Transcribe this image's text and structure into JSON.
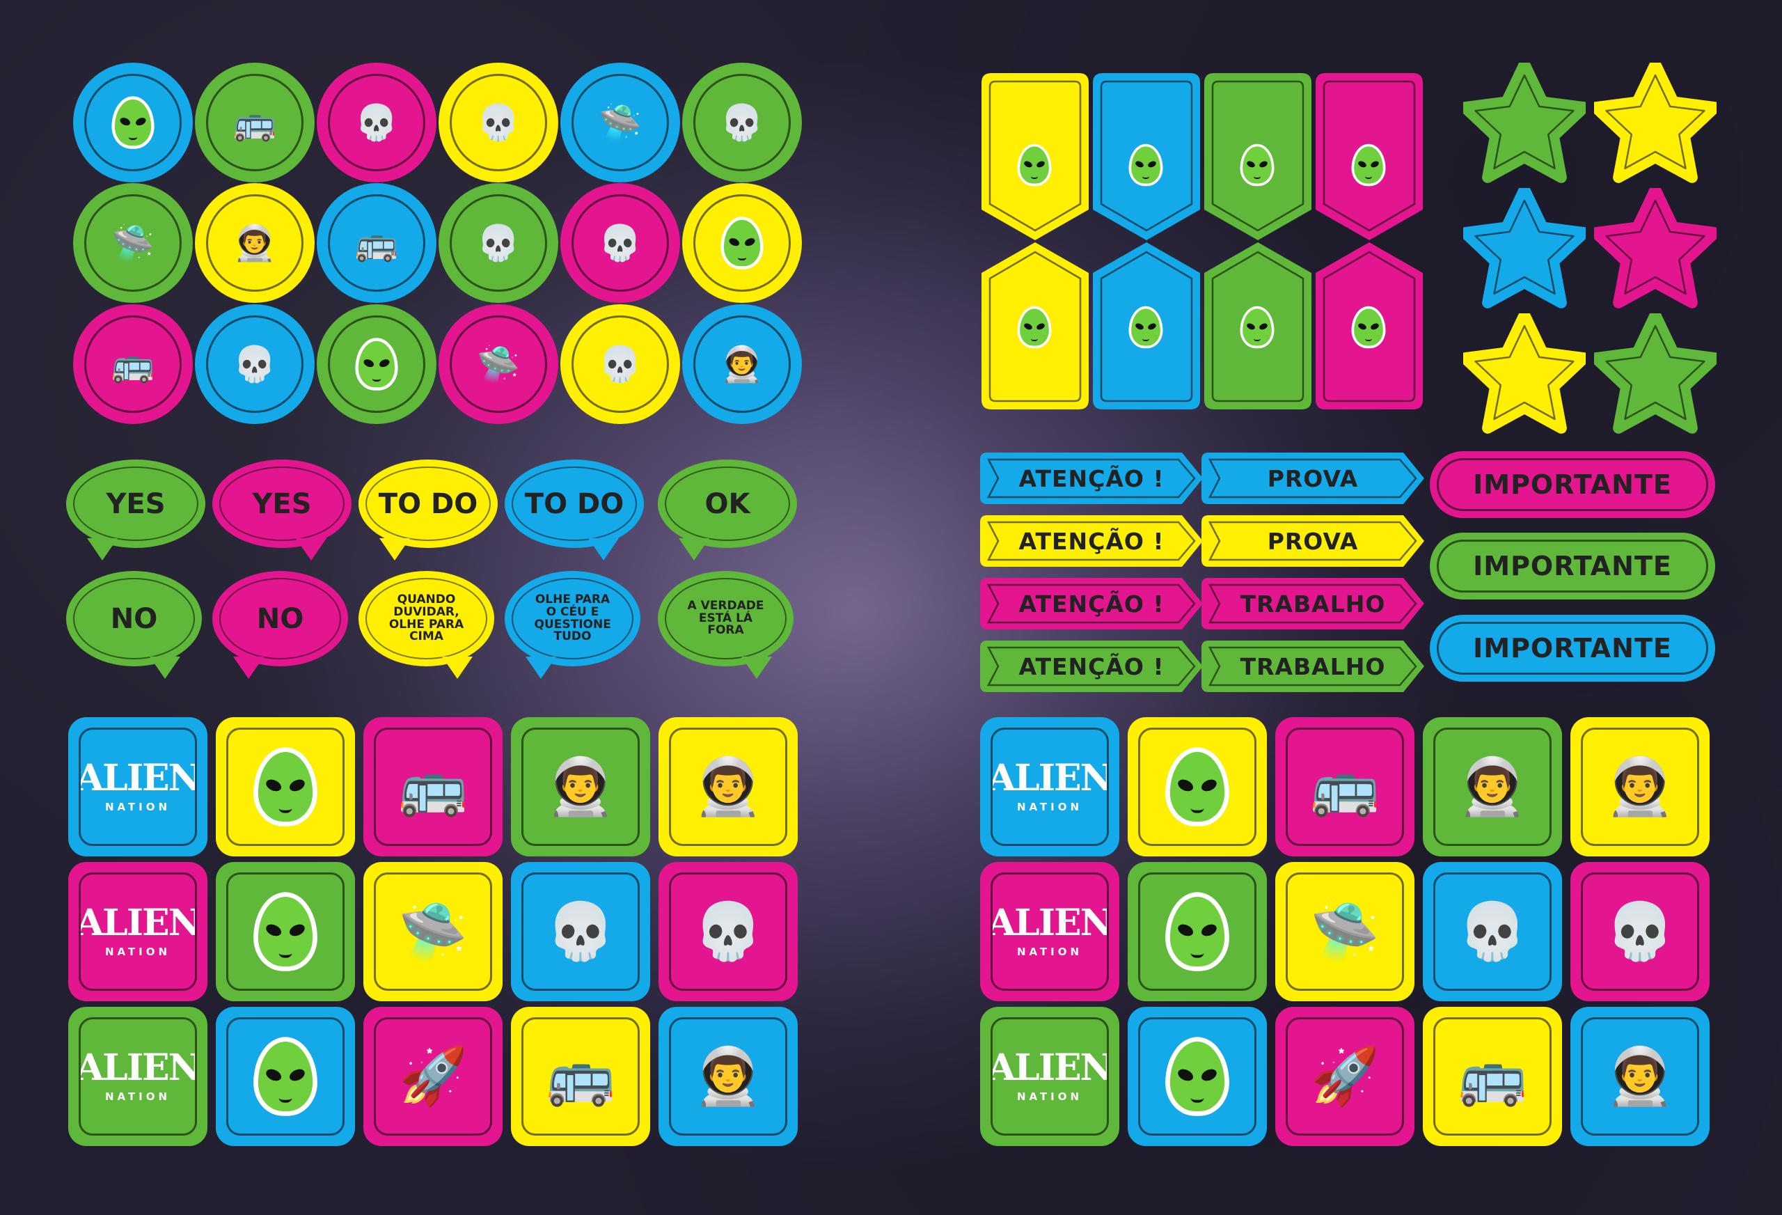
{
  "colors": {
    "blue": "#14a9e8",
    "green": "#5fb83a",
    "pink": "#e3168f",
    "yellow": "#ffef00",
    "bg": "#3a3350"
  },
  "bubbles": [
    {
      "text": "YES",
      "color": "green"
    },
    {
      "text": "YES",
      "color": "pink"
    },
    {
      "text": "TO DO",
      "color": "yellow"
    },
    {
      "text": "TO DO",
      "color": "blue"
    },
    {
      "text": "OK",
      "color": "green"
    },
    {
      "text": "NO",
      "color": "green"
    },
    {
      "text": "NO",
      "color": "pink"
    },
    {
      "text": "QUANDO DUVIDAR, OLHE PARA CIMA",
      "color": "yellow"
    },
    {
      "text": "OLHE PARA O CÉU E QUESTIONE TUDO",
      "color": "blue"
    },
    {
      "text": "A VERDADE ESTÁ LÁ FORA",
      "color": "green"
    }
  ],
  "logo": {
    "line1": "ALIEN",
    "line2": "NATION"
  },
  "labels": {
    "atencao": "ATENÇÃO !",
    "prova": "PROVA",
    "trabalho": "TRABALHO",
    "importante": "IMPORTANTE"
  },
  "icons": [
    "alien-head-icon",
    "ufo-icon",
    "astronaut-icon",
    "skull-icon",
    "rocket-icon",
    "bus-icon",
    "star-icon"
  ]
}
